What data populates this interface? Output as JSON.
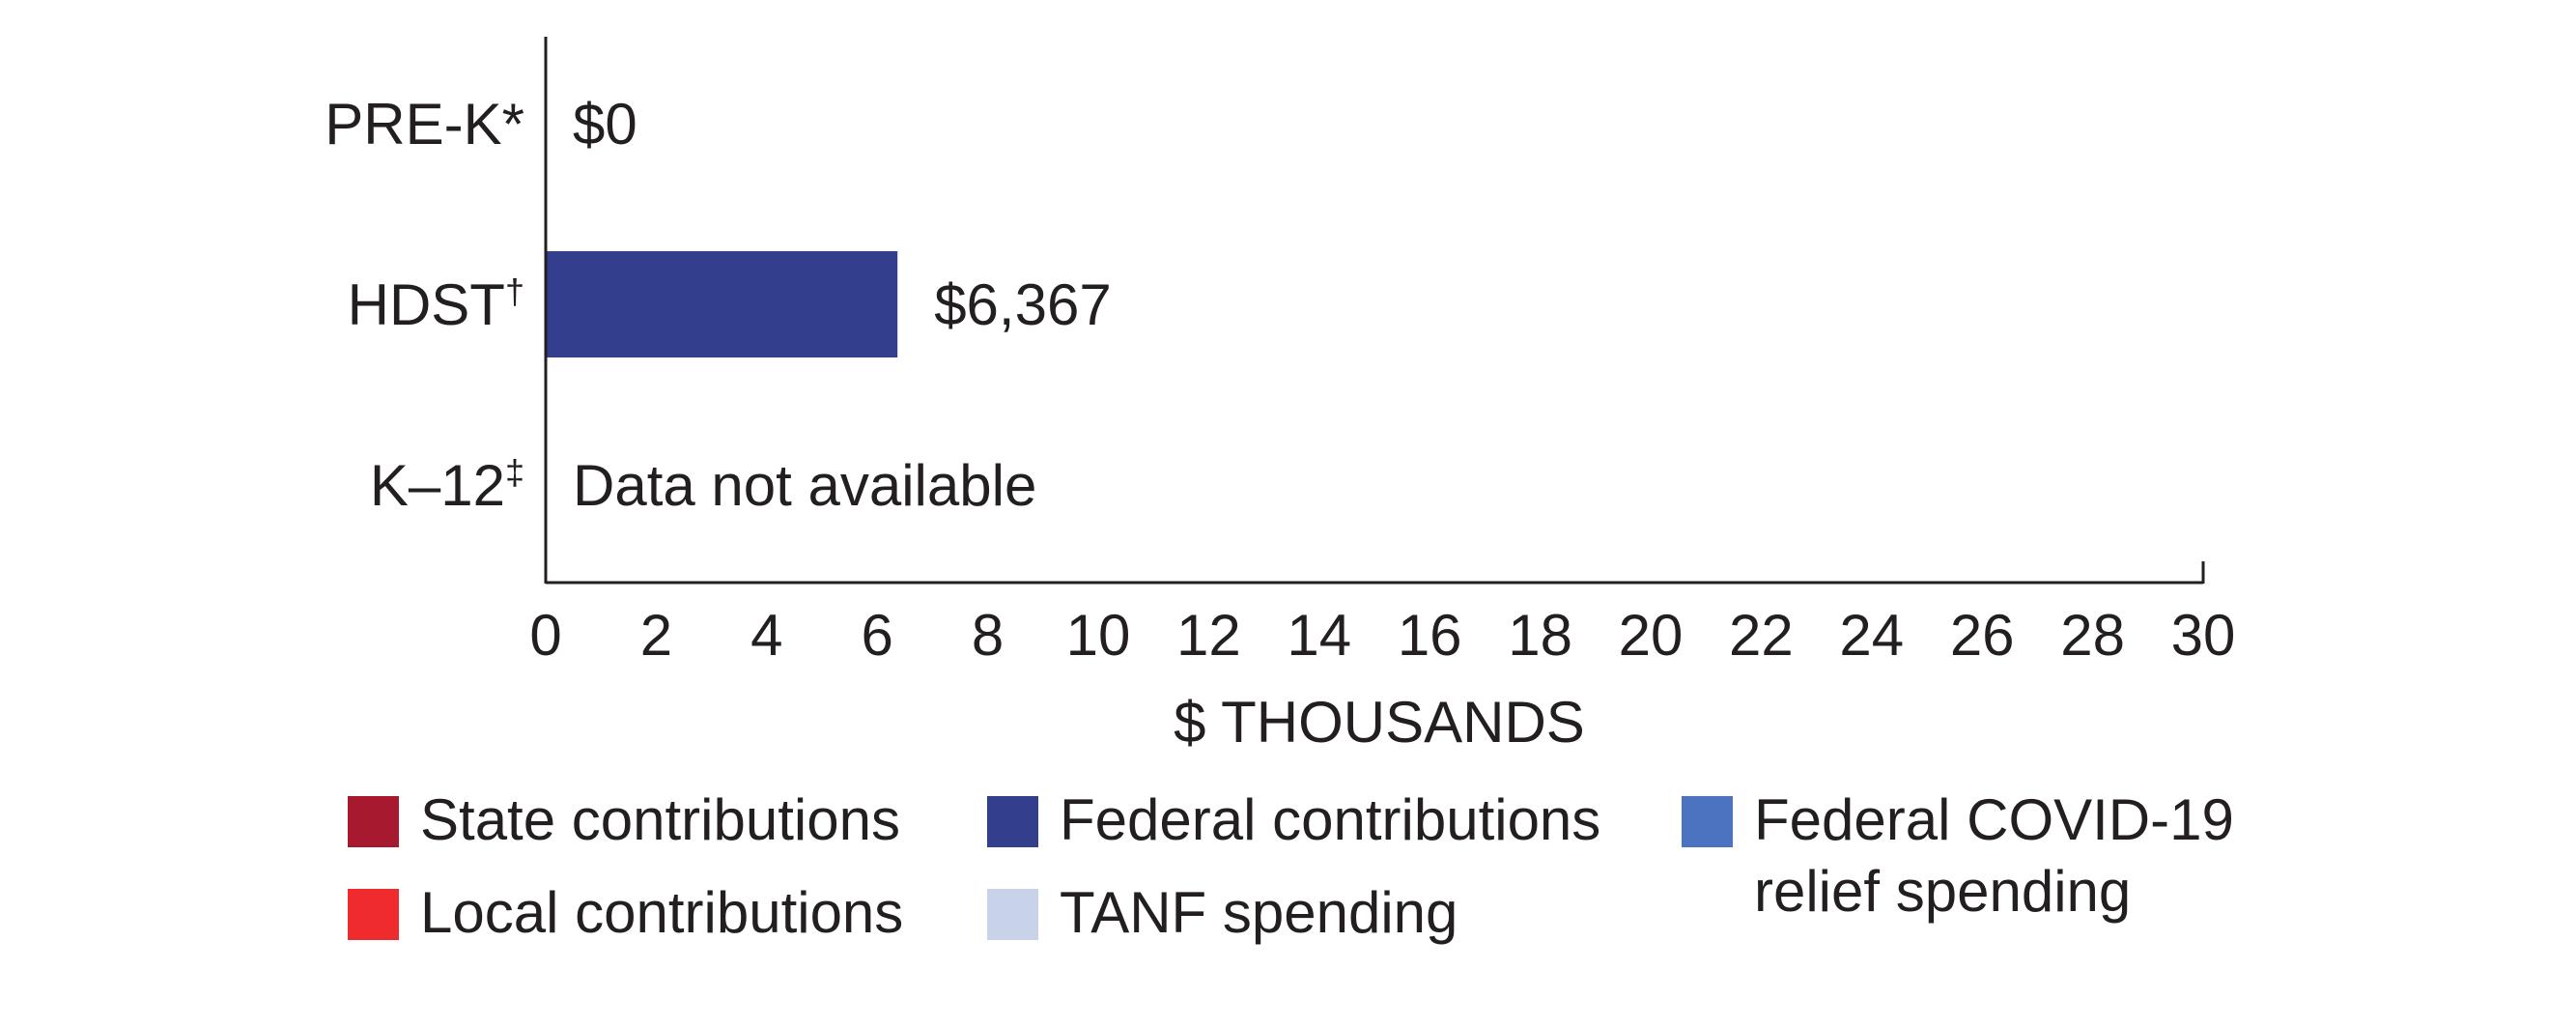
{
  "chart_data": {
    "type": "bar",
    "orientation": "horizontal",
    "categories": [
      "PRE-K*",
      "HDST†",
      "K–12‡"
    ],
    "series": [
      {
        "name": "State contributions",
        "color": "#a6192e",
        "values": [
          0,
          0,
          null
        ]
      },
      {
        "name": "Local contributions",
        "color": "#ef2b2d",
        "values": [
          0,
          0,
          null
        ]
      },
      {
        "name": "Federal contributions",
        "color": "#333f8c",
        "values": [
          0,
          6.367,
          null
        ]
      },
      {
        "name": "TANF spending",
        "color": "#c8d3ea",
        "values": [
          0,
          0,
          null
        ]
      },
      {
        "name": "Federal COVID-19 relief spending",
        "color": "#4c73bf",
        "values": [
          0,
          0,
          null
        ]
      }
    ],
    "data_labels": [
      "$0",
      "$6,367",
      "Data not available"
    ],
    "xlabel": "$ THOUSANDS",
    "xlim": [
      0,
      30
    ],
    "xticks": [
      0,
      2,
      4,
      6,
      8,
      10,
      12,
      14,
      16,
      18,
      20,
      22,
      24,
      26,
      28,
      30
    ],
    "grid": false,
    "legend_position": "bottom"
  },
  "legend": [
    {
      "label": "State contributions",
      "color": "#a6192e"
    },
    {
      "label": "Local contributions",
      "color": "#ef2b2d"
    },
    {
      "label": "Federal contributions",
      "color": "#333f8c"
    },
    {
      "label": "TANF spending",
      "color": "#c8d3ea"
    },
    {
      "label": "Federal COVID-19\nrelief spending",
      "color": "#4c73bf"
    }
  ]
}
